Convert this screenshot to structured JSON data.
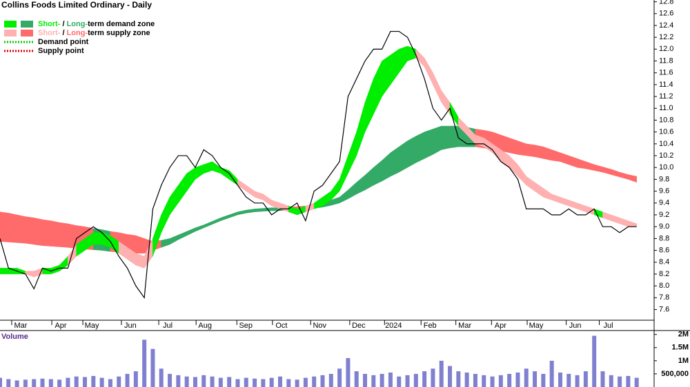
{
  "chart_data": [
    {
      "type": "line",
      "title": "Collins Foods Limited Ordinary - Daily",
      "color": "#000000",
      "values": [
        8.8,
        8.3,
        8.25,
        8.2,
        7.95,
        8.3,
        8.25,
        8.3,
        8.3,
        8.8,
        8.9,
        9.0,
        8.9,
        8.75,
        8.5,
        8.3,
        8.0,
        7.8,
        9.3,
        9.7,
        10.0,
        10.2,
        10.2,
        10.0,
        10.3,
        10.2,
        10.0,
        9.9,
        9.7,
        9.5,
        9.4,
        9.4,
        9.2,
        9.3,
        9.3,
        9.4,
        9.1,
        9.6,
        9.7,
        9.9,
        10.1,
        11.2,
        11.5,
        11.8,
        12.0,
        12.0,
        12.3,
        12.3,
        12.2,
        11.9,
        11.5,
        11.0,
        10.8,
        11.0,
        10.5,
        10.4,
        10.4,
        10.4,
        10.3,
        10.1,
        10.0,
        9.8,
        9.3,
        9.3,
        9.3,
        9.2,
        9.2,
        9.3,
        9.2,
        9.2,
        9.3,
        9.0,
        9.0,
        8.9,
        9.0,
        9.0
      ],
      "short_band": {
        "low": [
          8.2,
          8.2,
          8.2,
          8.2,
          8.15,
          8.2,
          8.2,
          8.25,
          8.35,
          8.5,
          8.6,
          8.7,
          8.7,
          8.65,
          8.55,
          8.45,
          8.35,
          8.3,
          8.5,
          8.9,
          9.2,
          9.4,
          9.6,
          9.8,
          9.9,
          9.95,
          9.9,
          9.8,
          9.7,
          9.6,
          9.5,
          9.45,
          9.35,
          9.3,
          9.25,
          9.2,
          9.25,
          9.3,
          9.35,
          9.45,
          9.6,
          9.9,
          10.2,
          10.6,
          10.9,
          11.2,
          11.4,
          11.6,
          11.8,
          11.85,
          11.7,
          11.4,
          11.1,
          10.9,
          10.7,
          10.55,
          10.4,
          10.35,
          10.25,
          10.1,
          10.0,
          9.85,
          9.7,
          9.6,
          9.5,
          9.45,
          9.4,
          9.35,
          9.3,
          9.25,
          9.2,
          9.15,
          9.1,
          9.05,
          9.0,
          9.0
        ],
        "high": [
          8.3,
          8.3,
          8.3,
          8.25,
          8.25,
          8.3,
          8.3,
          8.35,
          8.5,
          8.7,
          8.8,
          8.9,
          8.9,
          8.85,
          8.75,
          8.65,
          8.55,
          8.5,
          8.8,
          9.2,
          9.5,
          9.7,
          9.9,
          10.0,
          10.05,
          10.1,
          10.0,
          9.95,
          9.8,
          9.7,
          9.6,
          9.55,
          9.45,
          9.4,
          9.35,
          9.3,
          9.35,
          9.4,
          9.5,
          9.6,
          9.8,
          10.2,
          10.6,
          11.1,
          11.5,
          11.8,
          11.9,
          12.0,
          12.05,
          12.0,
          11.85,
          11.6,
          11.3,
          11.1,
          10.85,
          10.7,
          10.55,
          10.5,
          10.4,
          10.3,
          10.2,
          10.05,
          9.85,
          9.75,
          9.65,
          9.55,
          9.5,
          9.45,
          9.4,
          9.35,
          9.3,
          9.25,
          9.2,
          9.15,
          9.1,
          9.05
        ]
      },
      "long_band": {
        "low": [
          8.75,
          8.74,
          8.73,
          8.72,
          8.7,
          8.68,
          8.67,
          8.66,
          8.65,
          8.63,
          8.62,
          8.61,
          8.6,
          8.58,
          8.57,
          8.56,
          8.55,
          8.55,
          8.6,
          8.65,
          8.7,
          8.78,
          8.85,
          8.92,
          8.98,
          9.04,
          9.1,
          9.15,
          9.2,
          9.23,
          9.25,
          9.26,
          9.27,
          9.27,
          9.28,
          9.29,
          9.3,
          9.31,
          9.33,
          9.36,
          9.4,
          9.47,
          9.55,
          9.62,
          9.7,
          9.77,
          9.85,
          9.92,
          10.0,
          10.08,
          10.15,
          10.22,
          10.3,
          10.33,
          10.35,
          10.35,
          10.35,
          10.33,
          10.3,
          10.28,
          10.25,
          10.22,
          10.2,
          10.18,
          10.15,
          10.12,
          10.1,
          10.05,
          10.0,
          9.98,
          9.95,
          9.92,
          9.88,
          9.84,
          9.8,
          9.75
        ],
        "high": [
          9.25,
          9.23,
          9.2,
          9.17,
          9.15,
          9.12,
          9.1,
          9.07,
          9.05,
          9.02,
          9.0,
          8.97,
          8.95,
          8.92,
          8.9,
          8.87,
          8.85,
          8.8,
          8.75,
          8.77,
          8.8,
          8.86,
          8.92,
          8.98,
          9.03,
          9.09,
          9.15,
          9.2,
          9.25,
          9.28,
          9.3,
          9.31,
          9.32,
          9.32,
          9.33,
          9.34,
          9.35,
          9.37,
          9.4,
          9.45,
          9.5,
          9.62,
          9.75,
          9.87,
          10.0,
          10.12,
          10.25,
          10.35,
          10.45,
          10.53,
          10.6,
          10.65,
          10.7,
          10.7,
          10.7,
          10.68,
          10.65,
          10.63,
          10.6,
          10.55,
          10.5,
          10.45,
          10.4,
          10.38,
          10.35,
          10.3,
          10.25,
          10.2,
          10.15,
          10.1,
          10.05,
          10.01,
          9.97,
          9.92,
          9.88,
          9.85
        ]
      },
      "zones": [
        {
          "parts": [
            "Short-",
            " / ",
            "Long-",
            "term demand zone"
          ],
          "colors": [
            "#00ee00",
            "#33aa66"
          ]
        },
        {
          "parts": [
            "Short-",
            " / ",
            "Long-",
            "term supply zone"
          ],
          "colors": [
            "#ffb0b0",
            "#ff6b6b"
          ]
        }
      ],
      "points": [
        {
          "label": "Demand point",
          "color": "#00cc00"
        },
        {
          "label": "Supply point",
          "color": "#dd0000"
        }
      ],
      "xlim": [
        0,
        76
      ],
      "xticks": [
        {
          "value": 1.38,
          "label": "Mar"
        },
        {
          "value": 6.1,
          "label": "Apr"
        },
        {
          "value": 9.76,
          "label": "May"
        },
        {
          "value": 14.3,
          "label": "Jun"
        },
        {
          "value": 18.7,
          "label": "Jul"
        },
        {
          "value": 23.1,
          "label": "Aug"
        },
        {
          "value": 27.9,
          "label": "Sep"
        },
        {
          "value": 32.1,
          "label": "Oct"
        },
        {
          "value": 36.6,
          "label": "Nov"
        },
        {
          "value": 41.2,
          "label": "Dec"
        },
        {
          "value": 45.3,
          "label": "2024"
        },
        {
          "value": 49.6,
          "label": "Feb"
        },
        {
          "value": 53.7,
          "label": "Mar"
        },
        {
          "value": 57.9,
          "label": "Apr"
        },
        {
          "value": 62.1,
          "label": "May"
        },
        {
          "value": 66.7,
          "label": "Jun"
        },
        {
          "value": 70.6,
          "label": "Jul"
        }
      ],
      "ylim": [
        7.42,
        12.83
      ],
      "yticks": [
        7.6,
        7.8,
        {
          "value": 8,
          "label": "8.0"
        },
        8.2,
        8.4,
        8.6,
        8.8,
        {
          "value": 9,
          "label": "9.0"
        },
        9.2,
        9.4,
        9.6,
        9.8,
        {
          "value": 10,
          "label": "10.0"
        },
        10.2,
        10.4,
        10.6,
        10.8,
        {
          "value": 11,
          "label": "11.0"
        },
        11.2,
        11.4,
        11.6,
        11.8,
        {
          "value": 12,
          "label": "12.0"
        },
        12.2,
        12.4,
        12.6,
        12.8
      ]
    },
    {
      "type": "bar",
      "title": "Volume",
      "color": "#8080d0",
      "values": [
        350000,
        300000,
        250000,
        280000,
        300000,
        320000,
        300000,
        280000,
        350000,
        400000,
        380000,
        420000,
        350000,
        300000,
        400000,
        500000,
        600000,
        1800000,
        1450000,
        700000,
        500000,
        450000,
        400000,
        380000,
        450000,
        400000,
        350000,
        380000,
        300000,
        350000,
        320000,
        300000,
        350000,
        400000,
        300000,
        280000,
        350000,
        400000,
        450000,
        500000,
        700000,
        1100000,
        600000,
        500000,
        450000,
        500000,
        550000,
        400000,
        450000,
        500000,
        600000,
        700000,
        1000000,
        800000,
        600000,
        550000,
        500000,
        450000,
        400000,
        450000,
        500000,
        550000,
        700000,
        600000,
        500000,
        1000000,
        550000,
        500000,
        450000,
        600000,
        1950000,
        600000,
        450000,
        400000,
        420000,
        350000
      ],
      "xlim": [
        0,
        76
      ],
      "ylim": [
        0,
        2150000
      ],
      "yticks": [
        {
          "value": 500000,
          "label": "500,000"
        },
        {
          "value": 1000000,
          "label": "1M"
        },
        {
          "value": 1500000,
          "label": "1.5M"
        },
        {
          "value": 2000000,
          "label": "2M"
        }
      ]
    }
  ]
}
